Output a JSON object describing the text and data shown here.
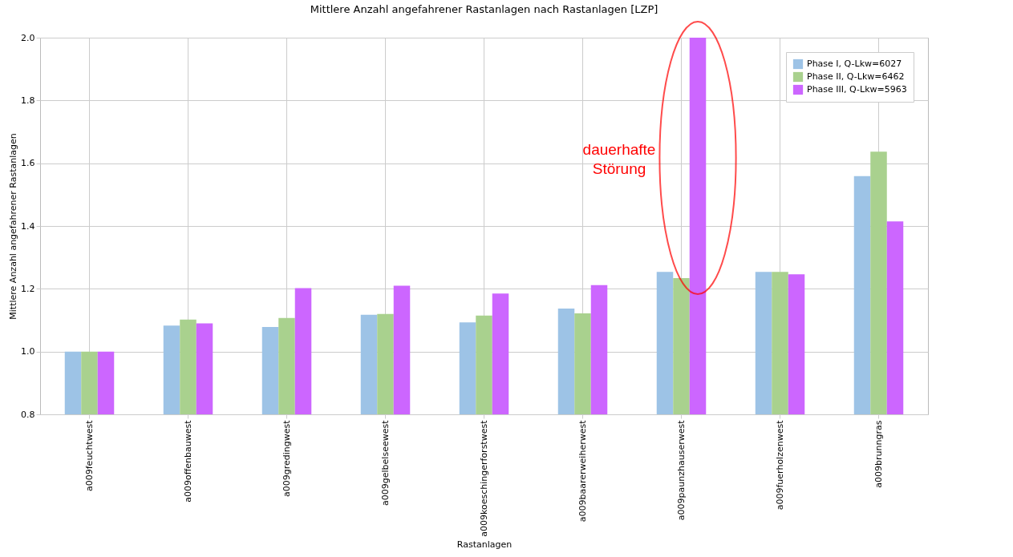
{
  "chart_data": {
    "type": "bar",
    "title": "Mittlere Anzahl angefahrener Rastanlagen nach Rastanlagen [LZP]",
    "xlabel": "Rastanlagen",
    "ylabel": "Mittlere Anzahl angefahrener Rastanlagen",
    "categories": [
      "a009feuchtwest",
      "a009offenbauwest",
      "a009gredingwest",
      "a009gelbelseewest",
      "a009koeschingerforstwest",
      "a009baarerweiherwest",
      "a009paunzhauserwest",
      "a009fuerholzenwest",
      "a009brunngras"
    ],
    "series": [
      {
        "name": "Phase I, Q-Lkw=6027",
        "color": "#9dc3e6",
        "values": [
          1.0,
          1.083,
          1.078,
          1.117,
          1.093,
          1.137,
          1.254,
          1.254,
          1.559
        ]
      },
      {
        "name": "Phase II, Q-Lkw=6462",
        "color": "#a9d18e",
        "values": [
          1.0,
          1.102,
          1.107,
          1.12,
          1.115,
          1.122,
          1.234,
          1.254,
          1.637
        ]
      },
      {
        "name": "Phase III, Q-Lkw=5963",
        "color": "#cc66ff",
        "values": [
          1.0,
          1.09,
          1.202,
          1.21,
          1.185,
          1.212,
          2.0,
          1.246,
          1.415
        ]
      }
    ],
    "ylim": [
      0.8,
      2.0
    ],
    "yticks": [
      {
        "value": 0.8,
        "label": "0.8"
      },
      {
        "value": 1.0,
        "label": "1.0"
      },
      {
        "value": 1.2,
        "label": "1.2"
      },
      {
        "value": 1.4,
        "label": "1.4"
      },
      {
        "value": 1.6,
        "label": "1.6"
      },
      {
        "value": 1.8,
        "label": "1.8"
      },
      {
        "value": 2.0,
        "label": "2.0"
      }
    ],
    "grid": true,
    "legend": "top right",
    "annotations": [
      "dauerhafte\nStörung"
    ]
  }
}
